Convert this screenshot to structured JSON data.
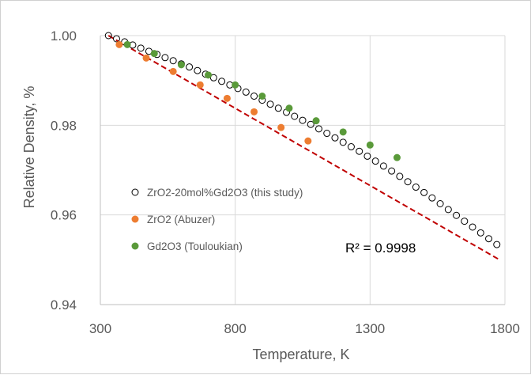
{
  "chart_data": {
    "type": "scatter",
    "xlabel": "Temperature,  K",
    "ylabel": "Relative Density, %",
    "xlim": [
      300,
      1800
    ],
    "ylim": [
      0.94,
      1.0
    ],
    "xticks": [
      300,
      800,
      1300,
      1800
    ],
    "yticks": [
      0.94,
      0.96,
      0.98,
      1.0
    ],
    "ytick_labels": [
      "0.94",
      "0.96",
      "0.98",
      "1.00"
    ],
    "grid": true,
    "legend_position": "left-middle",
    "annotation": "R² = 0.9998",
    "fit_line": {
      "style": "dashed",
      "color": "#c00000",
      "x": [
        330,
        1780
      ],
      "y": [
        1.0,
        0.95
      ]
    },
    "series": [
      {
        "name": "ZrO2-20mol%Gd2O3 (this study)",
        "marker": "open-circle",
        "color": "#000000",
        "x": [
          330,
          360,
          390,
          420,
          450,
          480,
          510,
          540,
          570,
          600,
          630,
          660,
          690,
          720,
          750,
          780,
          810,
          840,
          870,
          900,
          930,
          960,
          990,
          1020,
          1050,
          1080,
          1110,
          1140,
          1170,
          1200,
          1230,
          1260,
          1290,
          1320,
          1350,
          1380,
          1410,
          1440,
          1470,
          1500,
          1530,
          1560,
          1590,
          1620,
          1650,
          1680,
          1710,
          1740,
          1770
        ],
        "y": [
          1.0,
          0.9993,
          0.9986,
          0.9979,
          0.9972,
          0.9965,
          0.9958,
          0.9951,
          0.9944,
          0.9937,
          0.993,
          0.9922,
          0.9914,
          0.9906,
          0.9898,
          0.989,
          0.9882,
          0.9874,
          0.9865,
          0.9856,
          0.9847,
          0.9838,
          0.9829,
          0.982,
          0.9811,
          0.9802,
          0.9792,
          0.9782,
          0.9772,
          0.9762,
          0.9752,
          0.9742,
          0.9731,
          0.972,
          0.9709,
          0.9698,
          0.9686,
          0.9674,
          0.9662,
          0.965,
          0.9638,
          0.9625,
          0.9612,
          0.9599,
          0.9586,
          0.9573,
          0.956,
          0.9547,
          0.9534
        ]
      },
      {
        "name": "ZrO2 (Abuzer)",
        "marker": "filled-circle",
        "color": "#ed7d31",
        "x": [
          370,
          470,
          570,
          670,
          770,
          870,
          970,
          1070
        ],
        "y": [
          0.998,
          0.995,
          0.992,
          0.989,
          0.986,
          0.983,
          0.9795,
          0.9765
        ]
      },
      {
        "name": "Gd2O3 (Touloukian)",
        "marker": "filled-circle",
        "color": "#5a9a3a",
        "x": [
          400,
          500,
          600,
          700,
          800,
          900,
          1000,
          1100,
          1200,
          1300,
          1400
        ],
        "y": [
          0.998,
          0.996,
          0.9935,
          0.9912,
          0.989,
          0.9865,
          0.9838,
          0.981,
          0.9785,
          0.9756,
          0.9728
        ]
      }
    ]
  }
}
